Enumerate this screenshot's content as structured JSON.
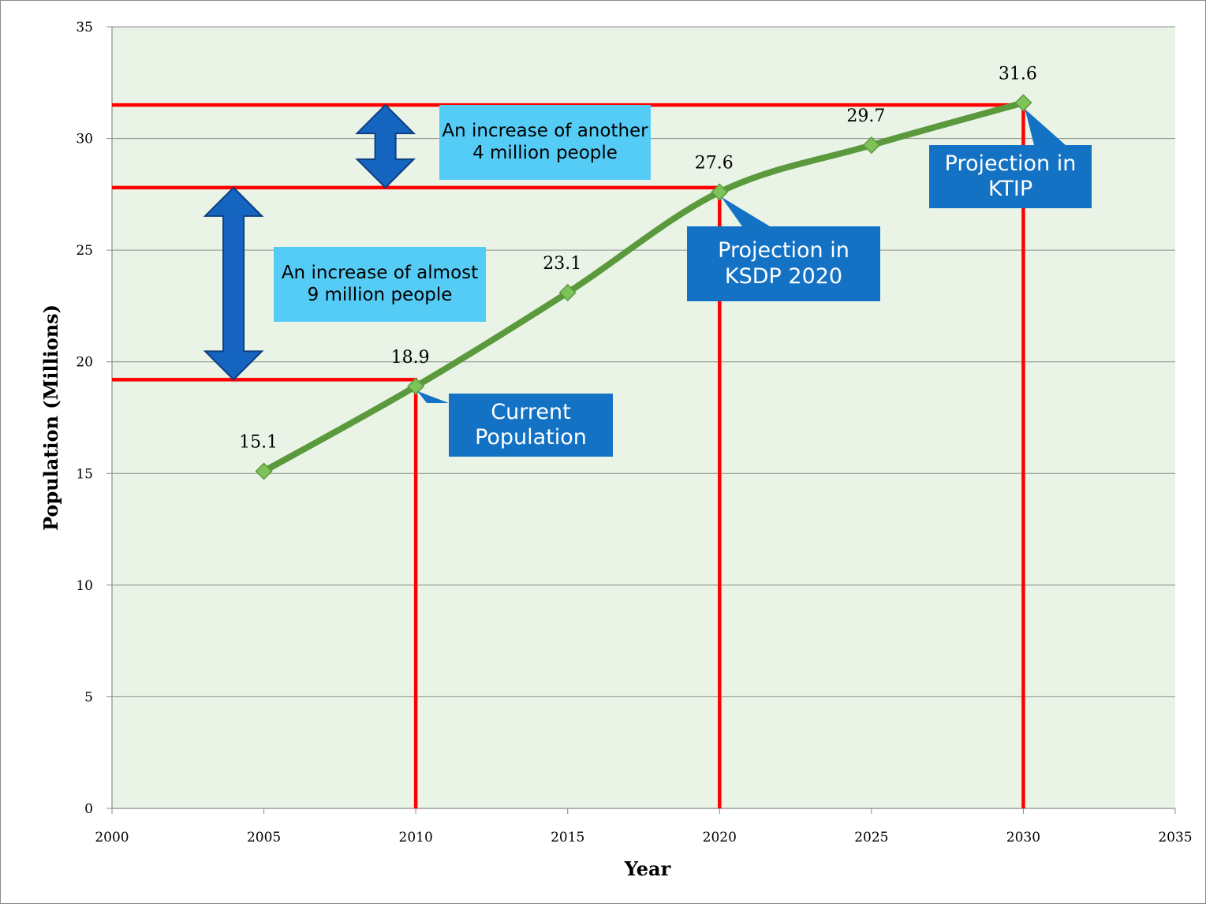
{
  "chart_data": {
    "type": "line",
    "title": "",
    "xlabel": "Year",
    "ylabel": "Population (Millions)",
    "xlim": [
      2000,
      2035
    ],
    "ylim": [
      0,
      35
    ],
    "x_ticks": [
      "2000",
      "2005",
      "2010",
      "2015",
      "2020",
      "2025",
      "2030",
      "2035"
    ],
    "y_ticks": [
      "0",
      "5",
      "10",
      "15",
      "20",
      "25",
      "30",
      "35"
    ],
    "grid": "horizontal",
    "legend": "none",
    "series": [
      {
        "x": [
          2005,
          2010,
          2015,
          2020,
          2025,
          2030
        ],
        "y": [
          15.1,
          18.9,
          23.1,
          27.6,
          29.7,
          31.6
        ],
        "labels": [
          "15.1",
          "18.9",
          "23.1",
          "27.6",
          "29.7",
          "31.6"
        ],
        "color": "#5b9a3c",
        "marker_color": "#7dc35a"
      }
    ],
    "reference_lines": [
      {
        "type": "horizontal",
        "y": 19.2,
        "x_from": 2000,
        "x_to": 2010,
        "color": "#ff0000"
      },
      {
        "type": "vertical",
        "x": 2010,
        "y_from": 0,
        "y_to": 19.2,
        "color": "#ff0000"
      },
      {
        "type": "horizontal",
        "y": 27.8,
        "x_from": 2000,
        "x_to": 2020,
        "color": "#ff0000"
      },
      {
        "type": "vertical",
        "x": 2020,
        "y_from": 0,
        "y_to": 27.8,
        "color": "#ff0000"
      },
      {
        "type": "horizontal",
        "y": 31.5,
        "x_from": 2000,
        "x_to": 2030,
        "color": "#ff0000"
      },
      {
        "type": "vertical",
        "x": 2030,
        "y_from": 0,
        "y_to": 31.5,
        "color": "#ff0000"
      }
    ],
    "arrows": [
      {
        "type": "double",
        "x": 2004,
        "y_from": 19.2,
        "y_to": 27.8,
        "color": "#1565c0"
      },
      {
        "type": "double",
        "x": 2009,
        "y_from": 27.8,
        "y_to": 31.5,
        "color": "#1565c0"
      }
    ],
    "annotations": [
      {
        "text": "An increase of another 4 million people",
        "style": "light"
      },
      {
        "text": "An increase of almost 9 million people",
        "style": "light"
      },
      {
        "text": "Current Population",
        "style": "dark"
      },
      {
        "text": "Projection in KSDP 2020",
        "style": "dark"
      },
      {
        "text": "Projection in KTIP",
        "style": "dark"
      }
    ],
    "colors": {
      "plot_background": "#eaf4e6",
      "gridline": "#8c8c8c",
      "reference": "#ff0000",
      "arrow": "#1565c0",
      "note_box": "#55ccf5",
      "callout_box": "#1472c4"
    }
  }
}
